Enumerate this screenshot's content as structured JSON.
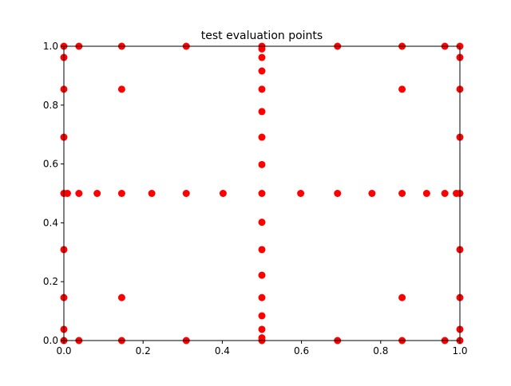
{
  "chart_data": {
    "type": "scatter",
    "title": "test evaluation points",
    "xlabel": "",
    "ylabel": "",
    "xlim": [
      0,
      1
    ],
    "ylim": [
      0,
      1
    ],
    "grid": false,
    "x_ticks": [
      "0.0",
      "0.2",
      "0.4",
      "0.6",
      "0.8",
      "1.0"
    ],
    "y_ticks": [
      "0.0",
      "0.2",
      "0.4",
      "0.6",
      "0.8",
      "1.0"
    ],
    "marker_color": "#ff0000",
    "series": [
      {
        "points": [
          [
            0.0,
            0.0
          ],
          [
            0.0,
            0.038
          ],
          [
            0.0,
            0.146
          ],
          [
            0.0,
            0.309
          ],
          [
            0.0,
            0.5
          ],
          [
            0.0,
            0.691
          ],
          [
            0.0,
            0.854
          ],
          [
            0.0,
            0.962
          ],
          [
            0.0,
            1.0
          ],
          [
            0.038,
            0.0
          ],
          [
            0.038,
            0.5
          ],
          [
            0.038,
            1.0
          ],
          [
            0.146,
            0.0
          ],
          [
            0.146,
            0.146
          ],
          [
            0.146,
            0.5
          ],
          [
            0.146,
            0.854
          ],
          [
            0.146,
            1.0
          ],
          [
            0.309,
            0.0
          ],
          [
            0.309,
            0.5
          ],
          [
            0.309,
            1.0
          ],
          [
            0.691,
            0.0
          ],
          [
            0.691,
            0.5
          ],
          [
            0.691,
            1.0
          ],
          [
            0.854,
            0.0
          ],
          [
            0.854,
            0.146
          ],
          [
            0.854,
            0.5
          ],
          [
            0.854,
            0.854
          ],
          [
            0.854,
            1.0
          ],
          [
            0.962,
            0.0
          ],
          [
            0.962,
            0.5
          ],
          [
            0.962,
            1.0
          ],
          [
            1.0,
            0.0
          ],
          [
            1.0,
            0.038
          ],
          [
            1.0,
            0.146
          ],
          [
            1.0,
            0.309
          ],
          [
            1.0,
            0.5
          ],
          [
            1.0,
            0.691
          ],
          [
            1.0,
            0.854
          ],
          [
            1.0,
            0.962
          ],
          [
            1.0,
            1.0
          ],
          [
            0.009,
            0.5
          ],
          [
            0.084,
            0.5
          ],
          [
            0.222,
            0.5
          ],
          [
            0.402,
            0.5
          ],
          [
            0.598,
            0.5
          ],
          [
            0.778,
            0.5
          ],
          [
            0.916,
            0.5
          ],
          [
            0.991,
            0.5
          ],
          [
            0.5,
            0.009
          ],
          [
            0.5,
            0.038
          ],
          [
            0.5,
            0.084
          ],
          [
            0.5,
            0.146
          ],
          [
            0.5,
            0.222
          ],
          [
            0.5,
            0.309
          ],
          [
            0.5,
            0.402
          ],
          [
            0.5,
            0.5
          ],
          [
            0.5,
            0.598
          ],
          [
            0.5,
            0.691
          ],
          [
            0.5,
            0.778
          ],
          [
            0.5,
            0.854
          ],
          [
            0.5,
            0.916
          ],
          [
            0.5,
            0.962
          ],
          [
            0.5,
            0.991
          ],
          [
            0.5,
            1.0
          ],
          [
            0.5,
            0.0
          ]
        ]
      }
    ]
  }
}
